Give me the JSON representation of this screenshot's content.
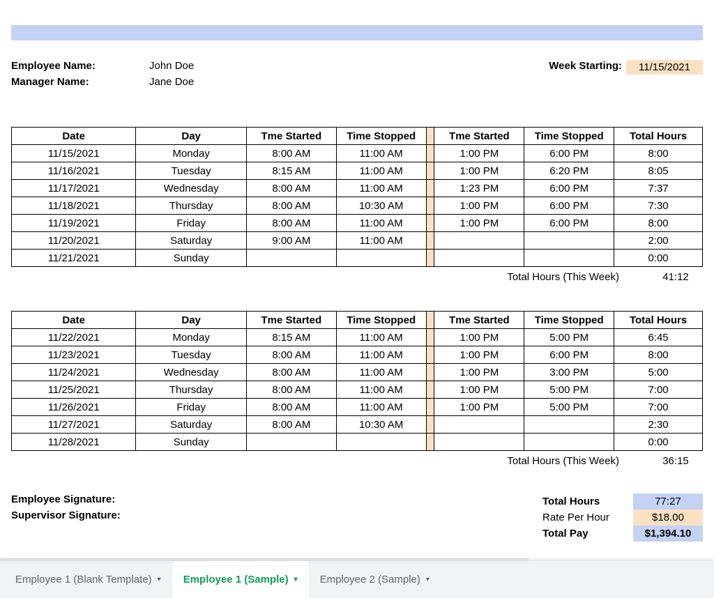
{
  "colors": {
    "blue_bar": "#c3d2f5",
    "peach": "#fbe1c4",
    "tab_bg": "#f1f3f4",
    "tab_active_text": "#0f9d58",
    "tab_text": "#5f6368"
  },
  "header": {
    "employee_name_label": "Employee Name:",
    "employee_name_value": "John Doe",
    "manager_name_label": "Manager Name:",
    "manager_name_value": "Jane Doe",
    "week_starting_label": "Week Starting:",
    "week_starting_value": "11/15/2021"
  },
  "columns": [
    "Date",
    "Day",
    "Tme Started",
    "Time Stopped",
    "",
    "Tme Started",
    "Time Stopped",
    "Total Hours"
  ],
  "week1": {
    "rows": [
      {
        "date": "11/15/2021",
        "day": "Monday",
        "s1": "8:00 AM",
        "e1": "11:00 AM",
        "s2": "1:00 PM",
        "e2": "6:00 PM",
        "tot": "8:00"
      },
      {
        "date": "11/16/2021",
        "day": "Tuesday",
        "s1": "8:15 AM",
        "e1": "11:00 AM",
        "s2": "1:00 PM",
        "e2": "6:20 PM",
        "tot": "8:05"
      },
      {
        "date": "11/17/2021",
        "day": "Wednesday",
        "s1": "8:00 AM",
        "e1": "11:00 AM",
        "s2": "1:23 PM",
        "e2": "6:00 PM",
        "tot": "7:37"
      },
      {
        "date": "11/18/2021",
        "day": "Thursday",
        "s1": "8:00 AM",
        "e1": "10:30 AM",
        "s2": "1:00 PM",
        "e2": "6:00 PM",
        "tot": "7:30"
      },
      {
        "date": "11/19/2021",
        "day": "Friday",
        "s1": "8:00 AM",
        "e1": "11:00 AM",
        "s2": "1:00 PM",
        "e2": "6:00 PM",
        "tot": "8:00"
      },
      {
        "date": "11/20/2021",
        "day": "Saturday",
        "s1": "9:00 AM",
        "e1": "11:00 AM",
        "s2": "",
        "e2": "",
        "tot": "2:00"
      },
      {
        "date": "11/21/2021",
        "day": "Sunday",
        "s1": "",
        "e1": "",
        "s2": "",
        "e2": "",
        "tot": "0:00"
      }
    ],
    "total_label": "Total Hours (This Week)",
    "total_value": "41:12"
  },
  "week2": {
    "rows": [
      {
        "date": "11/22/2021",
        "day": "Monday",
        "s1": "8:15 AM",
        "e1": "11:00 AM",
        "s2": "1:00 PM",
        "e2": "5:00 PM",
        "tot": "6:45"
      },
      {
        "date": "11/23/2021",
        "day": "Tuesday",
        "s1": "8:00 AM",
        "e1": "11:00 AM",
        "s2": "1:00 PM",
        "e2": "6:00 PM",
        "tot": "8:00"
      },
      {
        "date": "11/24/2021",
        "day": "Wednesday",
        "s1": "8:00 AM",
        "e1": "11:00 AM",
        "s2": "1:00 PM",
        "e2": "3:00 PM",
        "tot": "5:00"
      },
      {
        "date": "11/25/2021",
        "day": "Thursday",
        "s1": "8:00 AM",
        "e1": "11:00 AM",
        "s2": "1:00 PM",
        "e2": "5:00 PM",
        "tot": "7:00"
      },
      {
        "date": "11/26/2021",
        "day": "Friday",
        "s1": "8:00 AM",
        "e1": "11:00 AM",
        "s2": "1:00 PM",
        "e2": "5:00 PM",
        "tot": "7:00"
      },
      {
        "date": "11/27/2021",
        "day": "Saturday",
        "s1": "8:00 AM",
        "e1": "10:30 AM",
        "s2": "",
        "e2": "",
        "tot": "2:30"
      },
      {
        "date": "11/28/2021",
        "day": "Sunday",
        "s1": "",
        "e1": "",
        "s2": "",
        "e2": "",
        "tot": "0:00"
      }
    ],
    "total_label": "Total Hours (This Week)",
    "total_value": "36:15"
  },
  "footer": {
    "employee_sig_label": "Employee Signature:",
    "supervisor_sig_label": "Supervisor Signature:",
    "total_hours_label": "Total Hours",
    "total_hours_value": "77:27",
    "rate_label": "Rate Per Hour",
    "rate_value": "$18.00",
    "total_pay_label": "Total Pay",
    "total_pay_value": "$1,394.10"
  },
  "tabs": [
    {
      "label": "Employee 1 (Blank Template)",
      "active": false
    },
    {
      "label": "Employee 1 (Sample)",
      "active": true
    },
    {
      "label": "Employee 2 (Sample)",
      "active": false
    }
  ]
}
